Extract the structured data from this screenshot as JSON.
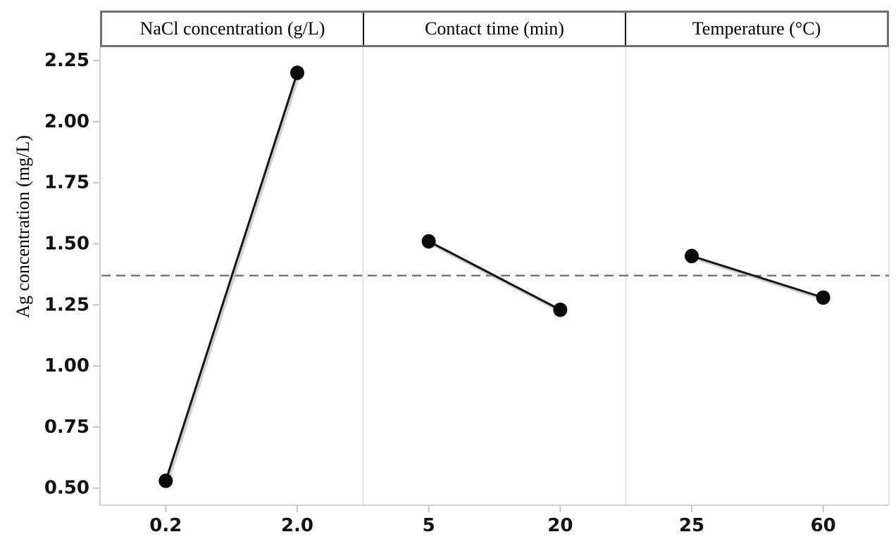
{
  "chart_data": {
    "type": "line",
    "subtype": "main-effects-plot",
    "title": "",
    "ylabel": "Ag concentration (mg/L)",
    "xlabel": "",
    "ylim": [
      0.43,
      2.305
    ],
    "y_ticks": [
      2.25,
      2.0,
      1.75,
      1.5,
      1.25,
      1.0,
      0.75,
      0.5
    ],
    "y_tick_labels": [
      "2.25",
      "2.00",
      "1.75",
      "1.50",
      "1.25",
      "1.00",
      "0.75",
      "0.50"
    ],
    "mean_line": 1.37,
    "grid": false,
    "legend": false,
    "marker": "filled-circle",
    "panels": [
      {
        "header": "NaCl concentration (g/L)",
        "categories": [
          "0.2",
          "2.0"
        ],
        "values": [
          0.53,
          2.2
        ]
      },
      {
        "header": "Contact time (min)",
        "categories": [
          "5",
          "20"
        ],
        "values": [
          1.51,
          1.23
        ]
      },
      {
        "header": "Temperature (°C)",
        "categories": [
          "25",
          "60"
        ],
        "values": [
          1.45,
          1.28
        ]
      }
    ],
    "colors": {
      "background": "#ffffff",
      "series_line": "#161616",
      "series_halo": "#adadad",
      "marker_fill": "#0b0b0b",
      "mean_line": "#6a6a6a",
      "axis_line": "#c4c4c4",
      "panel_divider": "#dedede",
      "plot_right_edge": "#d8d8d8",
      "header_border": "#6f6f6f",
      "header_divider": "#111111",
      "text": "#000000"
    }
  }
}
